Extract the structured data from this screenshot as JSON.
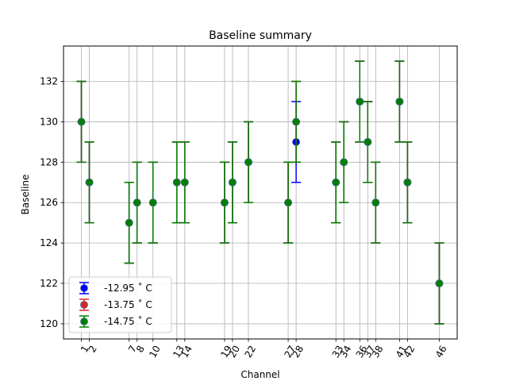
{
  "chart_data": {
    "type": "scatter",
    "title": "Baseline summary",
    "xlabel": "Channel",
    "ylabel": "Baseline",
    "xlim": [
      -1.25,
      48.25
    ],
    "ylim": [
      119.25,
      133.75
    ],
    "grid": true,
    "legend_position": "lower-left",
    "x_ticks": [
      1,
      2,
      7,
      8,
      10,
      13,
      14,
      19,
      20,
      22,
      27,
      28,
      33,
      34,
      36,
      37,
      38,
      41,
      42,
      46
    ],
    "y_ticks": [
      120,
      122,
      124,
      126,
      128,
      130,
      132
    ],
    "series": [
      {
        "name": "-12.95 $^\\circ$ C",
        "label": " -12.95 ˚ C",
        "color": "#0000ff",
        "points": [
          {
            "x": 1,
            "y": 130,
            "err": 2
          },
          {
            "x": 2,
            "y": 127,
            "err": 2
          },
          {
            "x": 7,
            "y": 125,
            "err": 2
          },
          {
            "x": 8,
            "y": 126,
            "err": 2
          },
          {
            "x": 10,
            "y": 126,
            "err": 2
          },
          {
            "x": 13,
            "y": 127,
            "err": 2
          },
          {
            "x": 14,
            "y": 127,
            "err": 2
          },
          {
            "x": 19,
            "y": 126,
            "err": 2
          },
          {
            "x": 20,
            "y": 127,
            "err": 2
          },
          {
            "x": 22,
            "y": 128,
            "err": 2
          },
          {
            "x": 27,
            "y": 126,
            "err": 2
          },
          {
            "x": 28,
            "y": 129,
            "err": 2
          },
          {
            "x": 33,
            "y": 127,
            "err": 2
          },
          {
            "x": 34,
            "y": 128,
            "err": 2
          },
          {
            "x": 36,
            "y": 131,
            "err": 2
          },
          {
            "x": 37,
            "y": 129,
            "err": 2
          },
          {
            "x": 38,
            "y": 126,
            "err": 2
          },
          {
            "x": 41,
            "y": 131,
            "err": 2
          },
          {
            "x": 42,
            "y": 127,
            "err": 2
          },
          {
            "x": 46,
            "y": 122,
            "err": 2
          }
        ]
      },
      {
        "name": "-13.75 $^\\circ$ C",
        "label": "-13.75 ˚ C",
        "color": "#d62728",
        "points": [
          {
            "x": 1,
            "y": 130,
            "err": 2
          },
          {
            "x": 2,
            "y": 127,
            "err": 2
          },
          {
            "x": 7,
            "y": 125,
            "err": 2
          },
          {
            "x": 8,
            "y": 126,
            "err": 2
          },
          {
            "x": 10,
            "y": 126,
            "err": 2
          },
          {
            "x": 13,
            "y": 127,
            "err": 2
          },
          {
            "x": 14,
            "y": 127,
            "err": 2
          },
          {
            "x": 19,
            "y": 126,
            "err": 2
          },
          {
            "x": 20,
            "y": 127,
            "err": 2
          },
          {
            "x": 22,
            "y": 128,
            "err": 2
          },
          {
            "x": 27,
            "y": 126,
            "err": 2
          },
          {
            "x": 28,
            "y": 130,
            "err": 2
          },
          {
            "x": 33,
            "y": 127,
            "err": 2
          },
          {
            "x": 34,
            "y": 128,
            "err": 2
          },
          {
            "x": 36,
            "y": 131,
            "err": 2
          },
          {
            "x": 37,
            "y": 129,
            "err": 2
          },
          {
            "x": 38,
            "y": 126,
            "err": 2
          },
          {
            "x": 41,
            "y": 131,
            "err": 2
          },
          {
            "x": 42,
            "y": 127,
            "err": 2
          },
          {
            "x": 46,
            "y": 122,
            "err": 2
          }
        ]
      },
      {
        "name": "-14.75 $^\\circ$ C",
        "label": "-14.75 ˚ C",
        "color": "#008000",
        "points": [
          {
            "x": 1,
            "y": 130,
            "err": 2
          },
          {
            "x": 2,
            "y": 127,
            "err": 2
          },
          {
            "x": 7,
            "y": 125,
            "err": 2
          },
          {
            "x": 8,
            "y": 126,
            "err": 2
          },
          {
            "x": 10,
            "y": 126,
            "err": 2
          },
          {
            "x": 13,
            "y": 127,
            "err": 2
          },
          {
            "x": 14,
            "y": 127,
            "err": 2
          },
          {
            "x": 19,
            "y": 126,
            "err": 2
          },
          {
            "x": 20,
            "y": 127,
            "err": 2
          },
          {
            "x": 22,
            "y": 128,
            "err": 2
          },
          {
            "x": 27,
            "y": 126,
            "err": 2
          },
          {
            "x": 28,
            "y": 130,
            "err": 2
          },
          {
            "x": 33,
            "y": 127,
            "err": 2
          },
          {
            "x": 34,
            "y": 128,
            "err": 2
          },
          {
            "x": 36,
            "y": 131,
            "err": 2
          },
          {
            "x": 37,
            "y": 129,
            "err": 2
          },
          {
            "x": 38,
            "y": 126,
            "err": 2
          },
          {
            "x": 41,
            "y": 131,
            "err": 2
          },
          {
            "x": 42,
            "y": 127,
            "err": 2
          },
          {
            "x": 46,
            "y": 122,
            "err": 2
          }
        ]
      }
    ]
  }
}
